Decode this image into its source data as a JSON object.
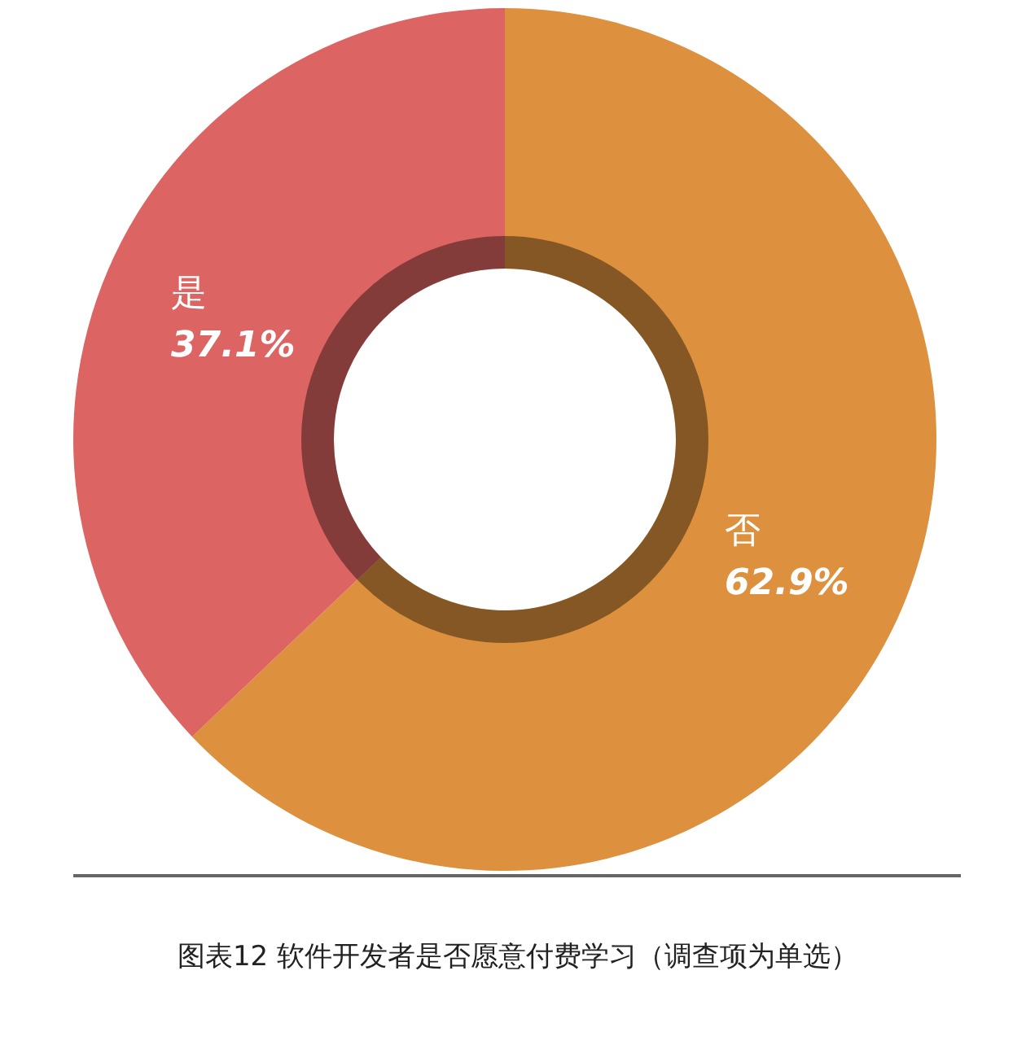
{
  "chart_data": {
    "type": "donut",
    "title": "图表12 软件开发者是否愿意付费学习（调查项为单选）",
    "categories": [
      "否",
      "是"
    ],
    "values": [
      62.9,
      37.1
    ],
    "colors": [
      "#dd913e",
      "#dc6463"
    ],
    "value_labels": [
      "62.9%",
      "37.1%"
    ],
    "legend": false
  }
}
